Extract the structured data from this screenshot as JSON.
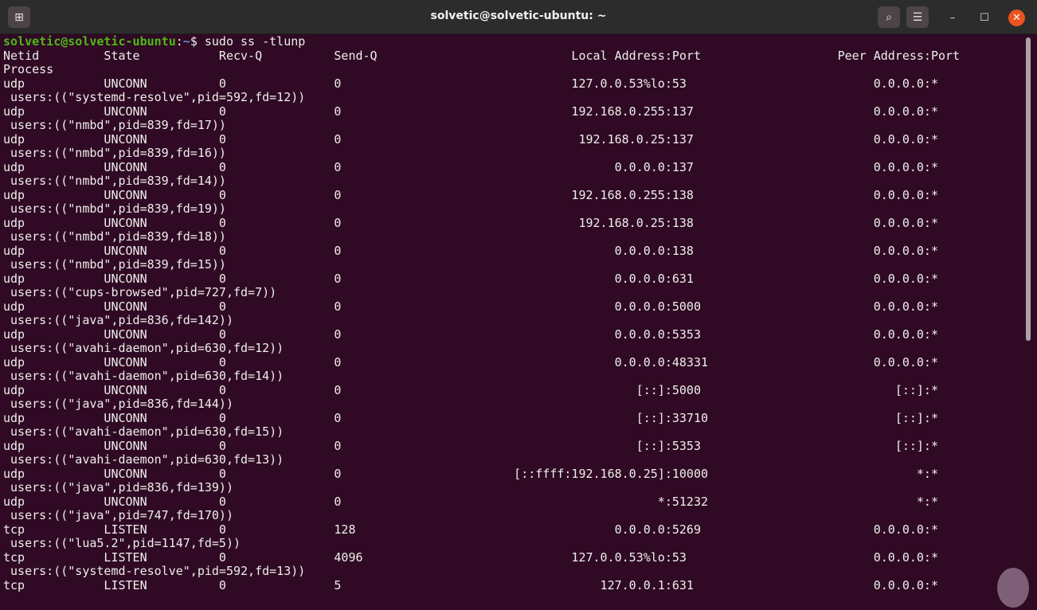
{
  "window": {
    "title": "solvetic@solvetic-ubuntu: ~",
    "new_tab_icon": "new-tab-icon",
    "search_icon": "search-icon",
    "menu_icon": "hamburger-menu-icon",
    "minimize_icon": "minimize-icon",
    "maximize_icon": "maximize-icon",
    "close_icon": "close-icon",
    "colors": {
      "background": "#300a24",
      "prompt_user": "#4fb818",
      "prompt_path": "#5d8ed4",
      "close_button": "#e95420"
    }
  },
  "prompt": {
    "user_host": "solvetic@solvetic-ubuntu",
    "colon": ":",
    "path": "~",
    "symbol": "$",
    "command": " sudo ss -tlunp"
  },
  "header": {
    "netid": "Netid",
    "state": "State",
    "recvq": "Recv-Q",
    "sendq": "Send-Q",
    "local": "Local Address:Port",
    "peer": "Peer Address:Port",
    "process": "Process"
  },
  "rows": [
    {
      "netid": "udp",
      "state": "UNCONN",
      "recvq": "0",
      "sendq": "0",
      "local": "127.0.0.53%lo:53",
      "peer": "0.0.0.0:*",
      "process": " users:((\"systemd-resolve\",pid=592,fd=12))"
    },
    {
      "netid": "udp",
      "state": "UNCONN",
      "recvq": "0",
      "sendq": "0",
      "local": "192.168.0.255:137",
      "peer": "0.0.0.0:*",
      "process": " users:((\"nmbd\",pid=839,fd=17))"
    },
    {
      "netid": "udp",
      "state": "UNCONN",
      "recvq": "0",
      "sendq": "0",
      "local": "192.168.0.25:137",
      "peer": "0.0.0.0:*",
      "process": " users:((\"nmbd\",pid=839,fd=16))"
    },
    {
      "netid": "udp",
      "state": "UNCONN",
      "recvq": "0",
      "sendq": "0",
      "local": "0.0.0.0:137",
      "peer": "0.0.0.0:*",
      "process": " users:((\"nmbd\",pid=839,fd=14))"
    },
    {
      "netid": "udp",
      "state": "UNCONN",
      "recvq": "0",
      "sendq": "0",
      "local": "192.168.0.255:138",
      "peer": "0.0.0.0:*",
      "process": " users:((\"nmbd\",pid=839,fd=19))"
    },
    {
      "netid": "udp",
      "state": "UNCONN",
      "recvq": "0",
      "sendq": "0",
      "local": "192.168.0.25:138",
      "peer": "0.0.0.0:*",
      "process": " users:((\"nmbd\",pid=839,fd=18))"
    },
    {
      "netid": "udp",
      "state": "UNCONN",
      "recvq": "0",
      "sendq": "0",
      "local": "0.0.0.0:138",
      "peer": "0.0.0.0:*",
      "process": " users:((\"nmbd\",pid=839,fd=15))"
    },
    {
      "netid": "udp",
      "state": "UNCONN",
      "recvq": "0",
      "sendq": "0",
      "local": "0.0.0.0:631",
      "peer": "0.0.0.0:*",
      "process": " users:((\"cups-browsed\",pid=727,fd=7))"
    },
    {
      "netid": "udp",
      "state": "UNCONN",
      "recvq": "0",
      "sendq": "0",
      "local": "0.0.0.0:5000",
      "peer": "0.0.0.0:*",
      "process": " users:((\"java\",pid=836,fd=142))"
    },
    {
      "netid": "udp",
      "state": "UNCONN",
      "recvq": "0",
      "sendq": "0",
      "local": "0.0.0.0:5353",
      "peer": "0.0.0.0:*",
      "process": " users:((\"avahi-daemon\",pid=630,fd=12))"
    },
    {
      "netid": "udp",
      "state": "UNCONN",
      "recvq": "0",
      "sendq": "0",
      "local": "0.0.0.0:48331",
      "peer": "0.0.0.0:*",
      "process": " users:((\"avahi-daemon\",pid=630,fd=14))"
    },
    {
      "netid": "udp",
      "state": "UNCONN",
      "recvq": "0",
      "sendq": "0",
      "local": "[::]:5000",
      "peer": "[::]:*",
      "process": " users:((\"java\",pid=836,fd=144))"
    },
    {
      "netid": "udp",
      "state": "UNCONN",
      "recvq": "0",
      "sendq": "0",
      "local": "[::]:33710",
      "peer": "[::]:*",
      "process": " users:((\"avahi-daemon\",pid=630,fd=15))"
    },
    {
      "netid": "udp",
      "state": "UNCONN",
      "recvq": "0",
      "sendq": "0",
      "local": "[::]:5353",
      "peer": "[::]:*",
      "process": " users:((\"avahi-daemon\",pid=630,fd=13))"
    },
    {
      "netid": "udp",
      "state": "UNCONN",
      "recvq": "0",
      "sendq": "0",
      "local": "[::ffff:192.168.0.25]:10000",
      "peer": "*:*",
      "process": " users:((\"java\",pid=836,fd=139))"
    },
    {
      "netid": "udp",
      "state": "UNCONN",
      "recvq": "0",
      "sendq": "0",
      "local": "*:51232",
      "peer": "*:*",
      "process": " users:((\"java\",pid=747,fd=170))"
    },
    {
      "netid": "tcp",
      "state": "LISTEN",
      "recvq": "0",
      "sendq": "128",
      "local": "0.0.0.0:5269",
      "peer": "0.0.0.0:*",
      "process": " users:((\"lua5.2\",pid=1147,fd=5))"
    },
    {
      "netid": "tcp",
      "state": "LISTEN",
      "recvq": "0",
      "sendq": "4096",
      "local": "127.0.0.53%lo:53",
      "peer": "0.0.0.0:*",
      "process": " users:((\"systemd-resolve\",pid=592,fd=13))"
    },
    {
      "netid": "tcp",
      "state": "LISTEN",
      "recvq": "0",
      "sendq": "5",
      "local": "127.0.0.1:631",
      "peer": "0.0.0.0:*",
      "process": ""
    }
  ]
}
